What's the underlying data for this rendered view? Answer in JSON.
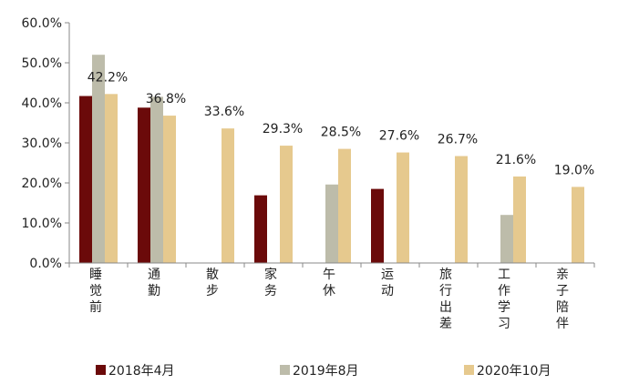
{
  "chart_data": {
    "type": "bar",
    "categories": [
      "睡觉前",
      "通勤",
      "散步",
      "家务",
      "午休",
      "运动",
      "旅行出差",
      "工作学习",
      "亲子陪伴"
    ],
    "series": [
      {
        "name": "2018年4月",
        "color": "#6b0a0a",
        "values": [
          41.7,
          38.8,
          null,
          16.9,
          null,
          18.5,
          null,
          null,
          null
        ]
      },
      {
        "name": "2019年8月",
        "color": "#bdbcaa",
        "values": [
          52.0,
          41.5,
          null,
          null,
          19.6,
          null,
          null,
          12.0,
          null
        ]
      },
      {
        "name": "2020年10月",
        "color": "#e6c98e",
        "values": [
          42.2,
          36.8,
          33.6,
          29.3,
          28.5,
          27.6,
          26.7,
          21.6,
          19.0
        ]
      }
    ],
    "data_labels": [
      "42.2%",
      "36.8%",
      "33.6%",
      "29.3%",
      "28.5%",
      "27.6%",
      "26.7%",
      "21.6%",
      "19.0%"
    ],
    "y_ticks": [
      "0.0%",
      "10.0%",
      "20.0%",
      "30.0%",
      "40.0%",
      "50.0%",
      "60.0%"
    ],
    "ylim": [
      0,
      60
    ],
    "legend_position": "bottom",
    "grid": false
  }
}
